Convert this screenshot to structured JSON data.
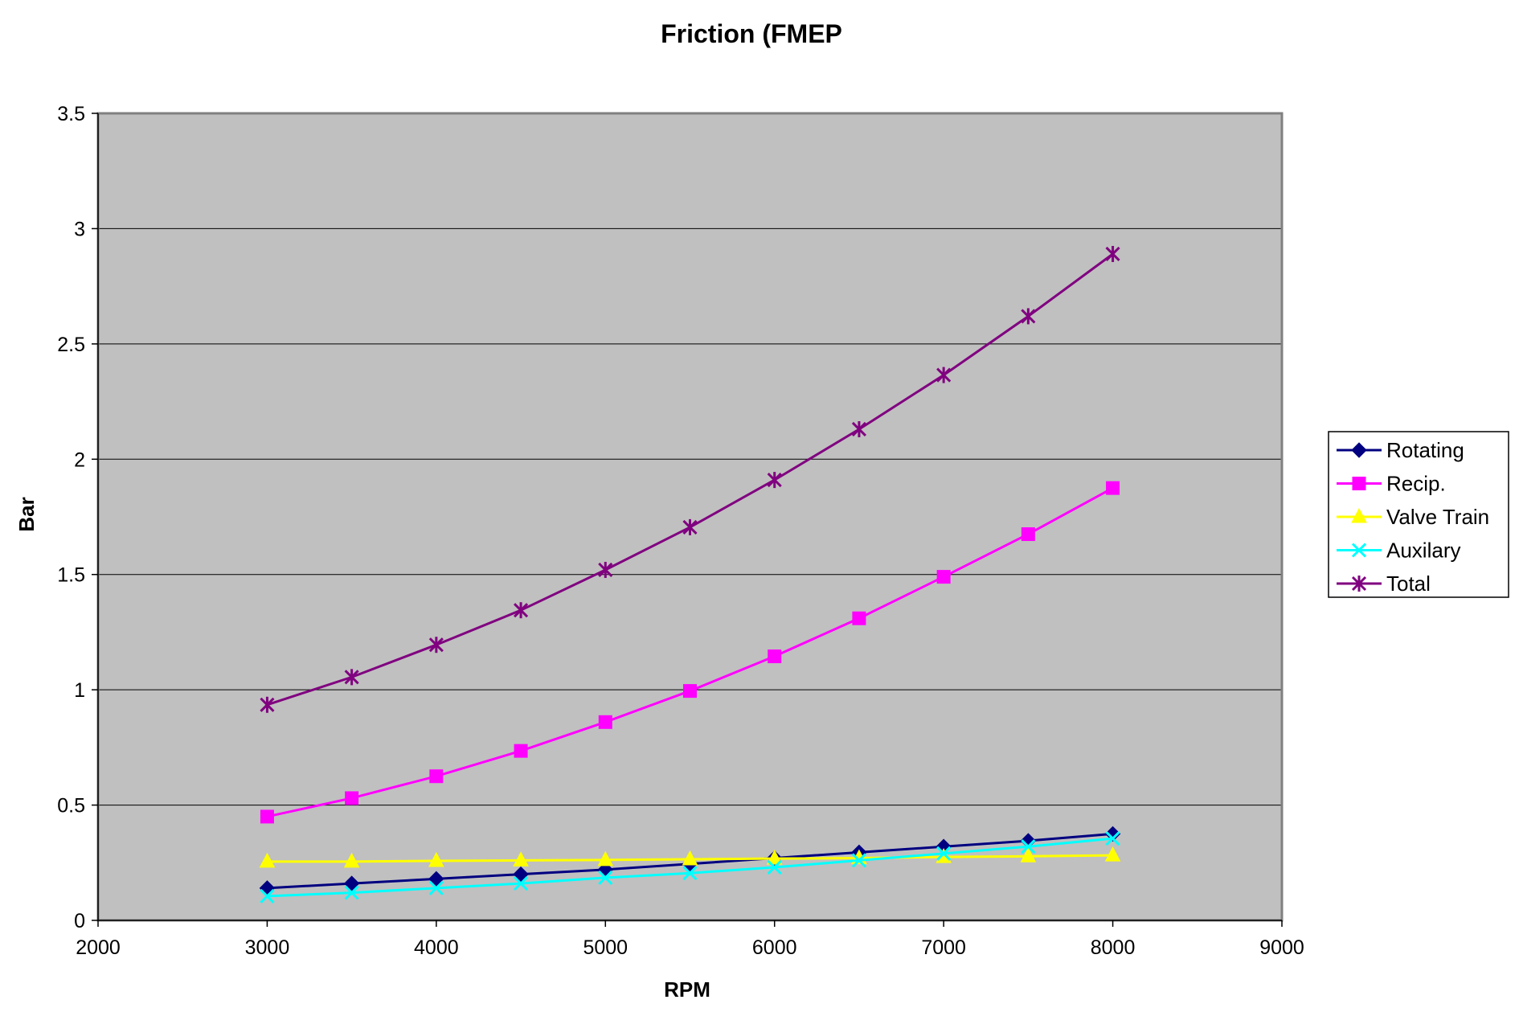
{
  "chart_data": {
    "type": "line",
    "title": "Friction (FMEP",
    "xlabel": "RPM",
    "ylabel": "Bar",
    "xlim": [
      2000,
      9000
    ],
    "ylim": [
      0,
      3.5
    ],
    "xticks": [
      2000,
      3000,
      4000,
      5000,
      6000,
      7000,
      8000,
      9000
    ],
    "yticks": [
      0,
      0.5,
      1,
      1.5,
      2,
      2.5,
      3,
      3.5
    ],
    "grid": "horizontal",
    "background": "#c0c0c0",
    "legend_position": "right",
    "x": [
      3000,
      3500,
      4000,
      4500,
      5000,
      5500,
      6000,
      6500,
      7000,
      7500,
      8000
    ],
    "series": [
      {
        "name": "Rotating",
        "color": "#000080",
        "marker": "diamond",
        "values": [
          0.14,
          0.16,
          0.18,
          0.2,
          0.22,
          0.245,
          0.27,
          0.295,
          0.32,
          0.345,
          0.375
        ]
      },
      {
        "name": "Recip.",
        "color": "#ff00ff",
        "marker": "square",
        "values": [
          0.45,
          0.53,
          0.625,
          0.735,
          0.86,
          0.995,
          1.145,
          1.31,
          1.49,
          1.675,
          1.875
        ]
      },
      {
        "name": "Valve Train",
        "color": "#ffff00",
        "marker": "triangle",
        "values": [
          0.255,
          0.255,
          0.258,
          0.26,
          0.262,
          0.265,
          0.268,
          0.27,
          0.275,
          0.278,
          0.282
        ]
      },
      {
        "name": "Auxilary",
        "color": "#00ffff",
        "marker": "x",
        "values": [
          0.105,
          0.12,
          0.14,
          0.16,
          0.185,
          0.205,
          0.23,
          0.26,
          0.29,
          0.32,
          0.355
        ]
      },
      {
        "name": "Total",
        "color": "#800080",
        "marker": "star",
        "values": [
          0.935,
          1.055,
          1.195,
          1.345,
          1.52,
          1.705,
          1.91,
          2.13,
          2.365,
          2.62,
          2.89
        ]
      }
    ]
  }
}
